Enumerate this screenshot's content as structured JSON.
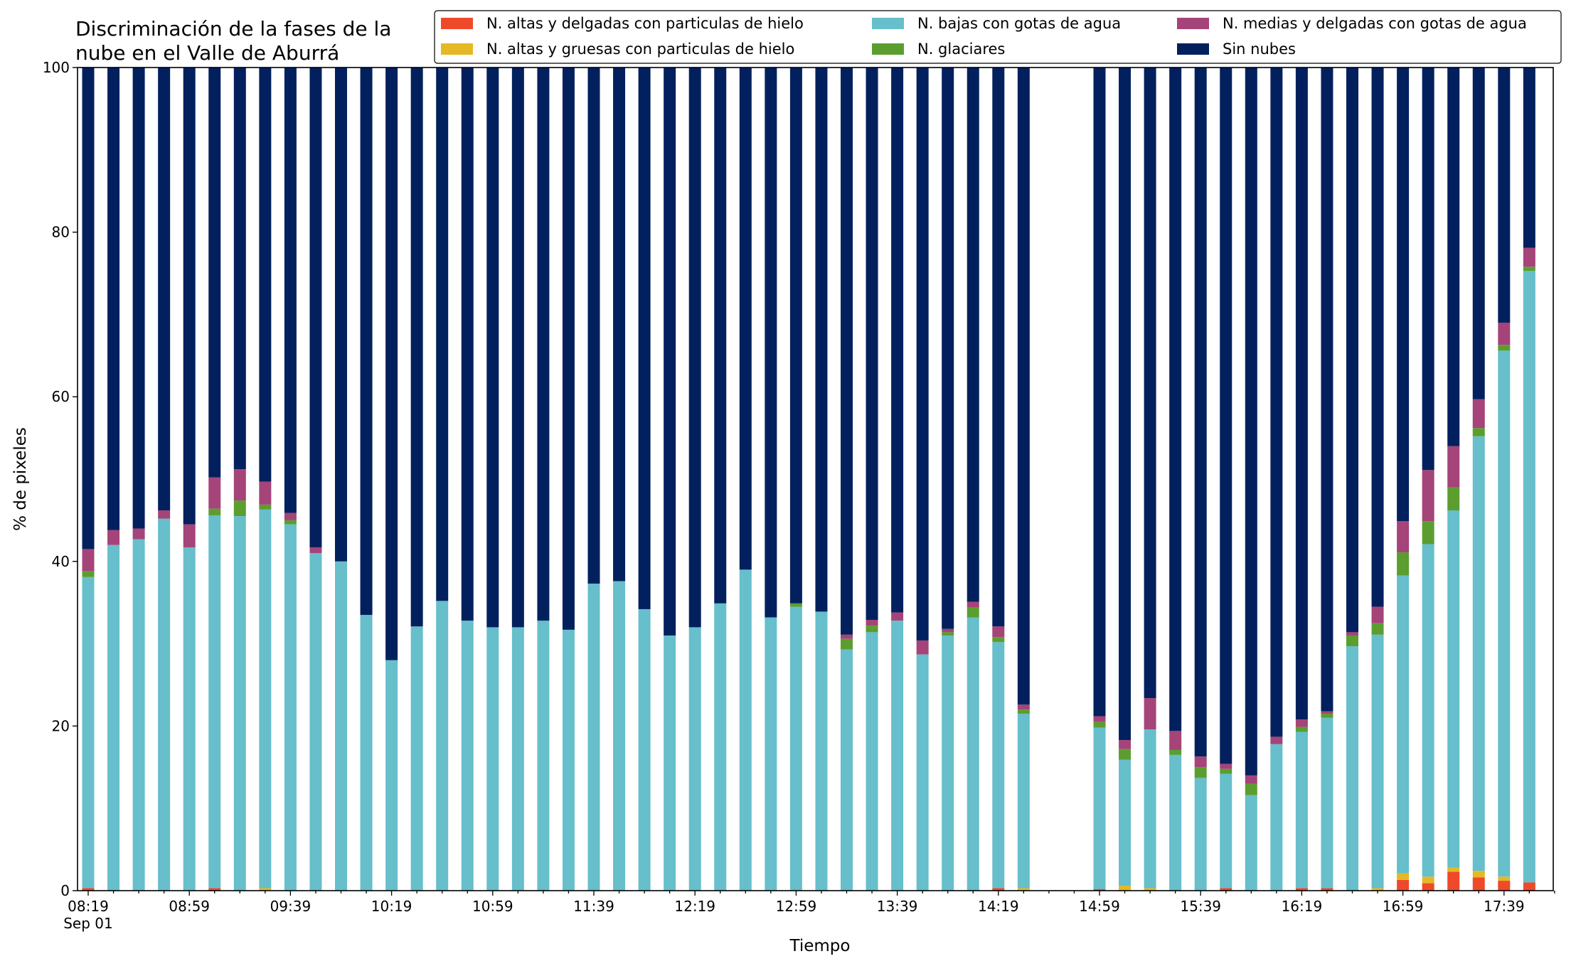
{
  "chart_data": {
    "type": "bar",
    "stacked": true,
    "title": "Discriminación de la fases de la nube en el Valle de Aburrá",
    "title_lines": [
      "Discriminación de la fases de la",
      "nube en el Valle de Aburrá"
    ],
    "xlabel": "Tiempo",
    "ylabel": "% de pixeles",
    "ylim": [
      0,
      100
    ],
    "yticks": [
      "0",
      "20",
      "40",
      "60",
      "80",
      "100"
    ],
    "xtick_labels": [
      "08:19",
      "08:59",
      "09:39",
      "10:19",
      "10:59",
      "11:39",
      "12:19",
      "12:59",
      "13:39",
      "14:19",
      "14:59",
      "15:39",
      "16:19",
      "16:59",
      "17:39"
    ],
    "xtick_sublabel": "Sep 01",
    "grid": false,
    "legend_position": "top-right",
    "categories": [
      "08:19",
      "08:29",
      "08:39",
      "08:49",
      "08:59",
      "09:09",
      "09:19",
      "09:29",
      "09:39",
      "09:49",
      "09:59",
      "10:09",
      "10:19",
      "10:29",
      "10:39",
      "10:49",
      "10:59",
      "11:09",
      "11:19",
      "11:29",
      "11:39",
      "11:49",
      "11:59",
      "12:09",
      "12:19",
      "12:29",
      "12:39",
      "12:49",
      "12:59",
      "13:09",
      "13:19",
      "13:29",
      "13:39",
      "13:49",
      "13:59",
      "14:09",
      "14:19",
      "14:29",
      "14:39",
      "14:49",
      "14:59",
      "15:09",
      "15:19",
      "15:29",
      "15:39",
      "15:49",
      "15:59",
      "16:09",
      "16:19",
      "16:29",
      "16:39",
      "16:49",
      "16:59",
      "17:09",
      "17:19",
      "17:29",
      "17:39",
      "17:49"
    ],
    "series": [
      {
        "name": "N. altas y delgadas con particulas de hielo",
        "color": "#ee4a2a",
        "values": [
          0.3,
          0,
          0,
          0,
          0,
          0.3,
          0,
          0,
          0,
          0,
          0,
          0,
          0,
          0,
          0,
          0,
          0,
          0,
          0,
          0,
          0,
          0,
          0,
          0,
          0,
          0,
          0,
          0,
          0,
          0,
          0,
          0,
          0,
          0,
          0,
          0,
          0.3,
          0,
          null,
          null,
          0.2,
          0,
          0,
          0,
          0,
          0.3,
          0,
          0,
          0.3,
          0.3,
          0,
          0,
          1.3,
          0.9,
          2.3,
          1.6,
          1.2,
          1.0
        ]
      },
      {
        "name": "N. altas y gruesas con particulas de hielo",
        "color": "#e6b825",
        "values": [
          0,
          0,
          0,
          0,
          0,
          0,
          0,
          0.3,
          0,
          0,
          0,
          0,
          0,
          0,
          0,
          0,
          0,
          0,
          0,
          0,
          0,
          0,
          0,
          0,
          0,
          0,
          0,
          0,
          0,
          0,
          0,
          0,
          0,
          0,
          0,
          0,
          0,
          0.3,
          null,
          null,
          0,
          0.6,
          0.3,
          0,
          0,
          0,
          0,
          0,
          0,
          0,
          0,
          0.3,
          0.8,
          0.8,
          0.5,
          0.8,
          0.5,
          0
        ]
      },
      {
        "name": "N. bajas con gotas de agua",
        "color": "#66bfcb",
        "values": [
          37.8,
          42.0,
          42.7,
          45.2,
          41.7,
          45.3,
          45.5,
          46.0,
          44.5,
          41.0,
          40.0,
          33.5,
          28.0,
          32.1,
          35.2,
          32.8,
          32.0,
          32.0,
          32.8,
          31.7,
          37.3,
          37.6,
          34.2,
          31.0,
          32.0,
          34.9,
          39.0,
          33.2,
          34.5,
          33.9,
          29.3,
          31.4,
          32.8,
          28.7,
          31.0,
          33.2,
          29.9,
          21.2,
          null,
          null,
          19.6,
          15.3,
          19.3,
          16.5,
          13.7,
          13.9,
          11.6,
          17.8,
          19.0,
          20.7,
          29.7,
          30.8,
          36.2,
          40.4,
          43.4,
          52.8,
          63.9,
          74.3
        ]
      },
      {
        "name": "N. glaciares",
        "color": "#5b9e2f",
        "values": [
          0.7,
          0,
          0,
          0,
          0,
          0.8,
          1.9,
          0.6,
          0.5,
          0,
          0,
          0,
          0,
          0,
          0,
          0,
          0,
          0,
          0,
          0,
          0,
          0,
          0,
          0,
          0,
          0,
          0,
          0,
          0.4,
          0,
          1.3,
          0.8,
          0,
          0,
          0.4,
          1.2,
          0.6,
          0.5,
          null,
          null,
          0.7,
          1.3,
          0,
          0.6,
          1.3,
          0.6,
          1.4,
          0,
          0.6,
          0.5,
          1.3,
          1.4,
          2.8,
          2.8,
          2.8,
          1.0,
          0.7,
          0.5
        ]
      },
      {
        "name": "N. medias y delgadas con gotas de agua",
        "color": "#a54478",
        "values": [
          2.7,
          1.8,
          1.3,
          1.0,
          2.8,
          3.8,
          3.8,
          2.8,
          0.9,
          0.7,
          0,
          0,
          0,
          0,
          0,
          0,
          0,
          0,
          0,
          0,
          0,
          0,
          0,
          0,
          0,
          0,
          0,
          0,
          0,
          0,
          0.5,
          0.7,
          1.0,
          1.7,
          0.4,
          0.7,
          1.3,
          0.6,
          null,
          null,
          0.7,
          1.1,
          3.8,
          2.3,
          1.3,
          0.6,
          1.0,
          0.9,
          0.9,
          0.3,
          0.4,
          2.0,
          3.8,
          6.2,
          5.0,
          3.5,
          2.7,
          2.3
        ]
      },
      {
        "name": "Sin nubes",
        "color": "#03205e",
        "values": [
          58.5,
          56.2,
          56.0,
          53.8,
          55.5,
          49.8,
          48.8,
          50.3,
          54.1,
          58.3,
          60.0,
          66.5,
          72.0,
          67.9,
          64.8,
          67.2,
          68.0,
          68.0,
          67.2,
          68.3,
          62.7,
          62.4,
          65.8,
          69.0,
          68.0,
          65.1,
          61.0,
          66.8,
          65.1,
          66.1,
          68.9,
          67.1,
          66.2,
          69.6,
          68.2,
          64.9,
          67.9,
          77.4,
          null,
          null,
          78.8,
          81.7,
          76.6,
          80.6,
          83.7,
          84.6,
          86.0,
          81.3,
          79.2,
          78.2,
          68.6,
          65.5,
          55.1,
          48.9,
          46.0,
          40.3,
          31.0,
          21.9
        ]
      }
    ]
  }
}
